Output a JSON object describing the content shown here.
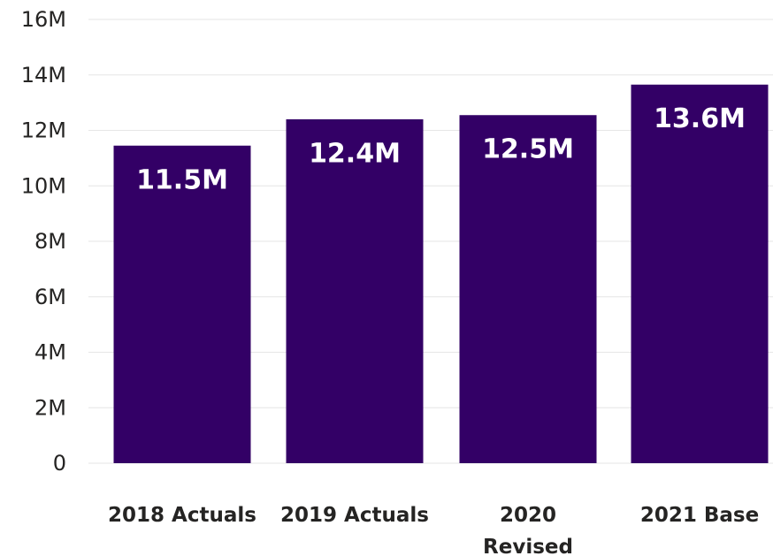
{
  "chart_data": {
    "type": "bar",
    "categories": [
      [
        "2018 Actuals"
      ],
      [
        "2019 Actuals"
      ],
      [
        "2020",
        "Revised"
      ],
      [
        "2021 Base"
      ]
    ],
    "values": [
      11.45,
      12.4,
      12.55,
      13.65
    ],
    "data_labels": [
      "11.5M",
      "12.4M",
      "12.5M",
      "13.6M"
    ],
    "title": "",
    "xlabel": "",
    "ylabel": "",
    "ylim": [
      0,
      16
    ],
    "y_ticks": [
      {
        "value": 0,
        "label": "0"
      },
      {
        "value": 2,
        "label": "2M"
      },
      {
        "value": 4,
        "label": "4M"
      },
      {
        "value": 6,
        "label": "6M"
      },
      {
        "value": 8,
        "label": "8M"
      },
      {
        "value": 10,
        "label": "10M"
      },
      {
        "value": 12,
        "label": "12M"
      },
      {
        "value": 14,
        "label": "14M"
      },
      {
        "value": 16,
        "label": "16M"
      }
    ],
    "grid": true,
    "legend": "none",
    "bar_color": "#330066",
    "grid_color": "#e6e6e6",
    "text_color": "#252423",
    "label_color": "#ffffff"
  }
}
